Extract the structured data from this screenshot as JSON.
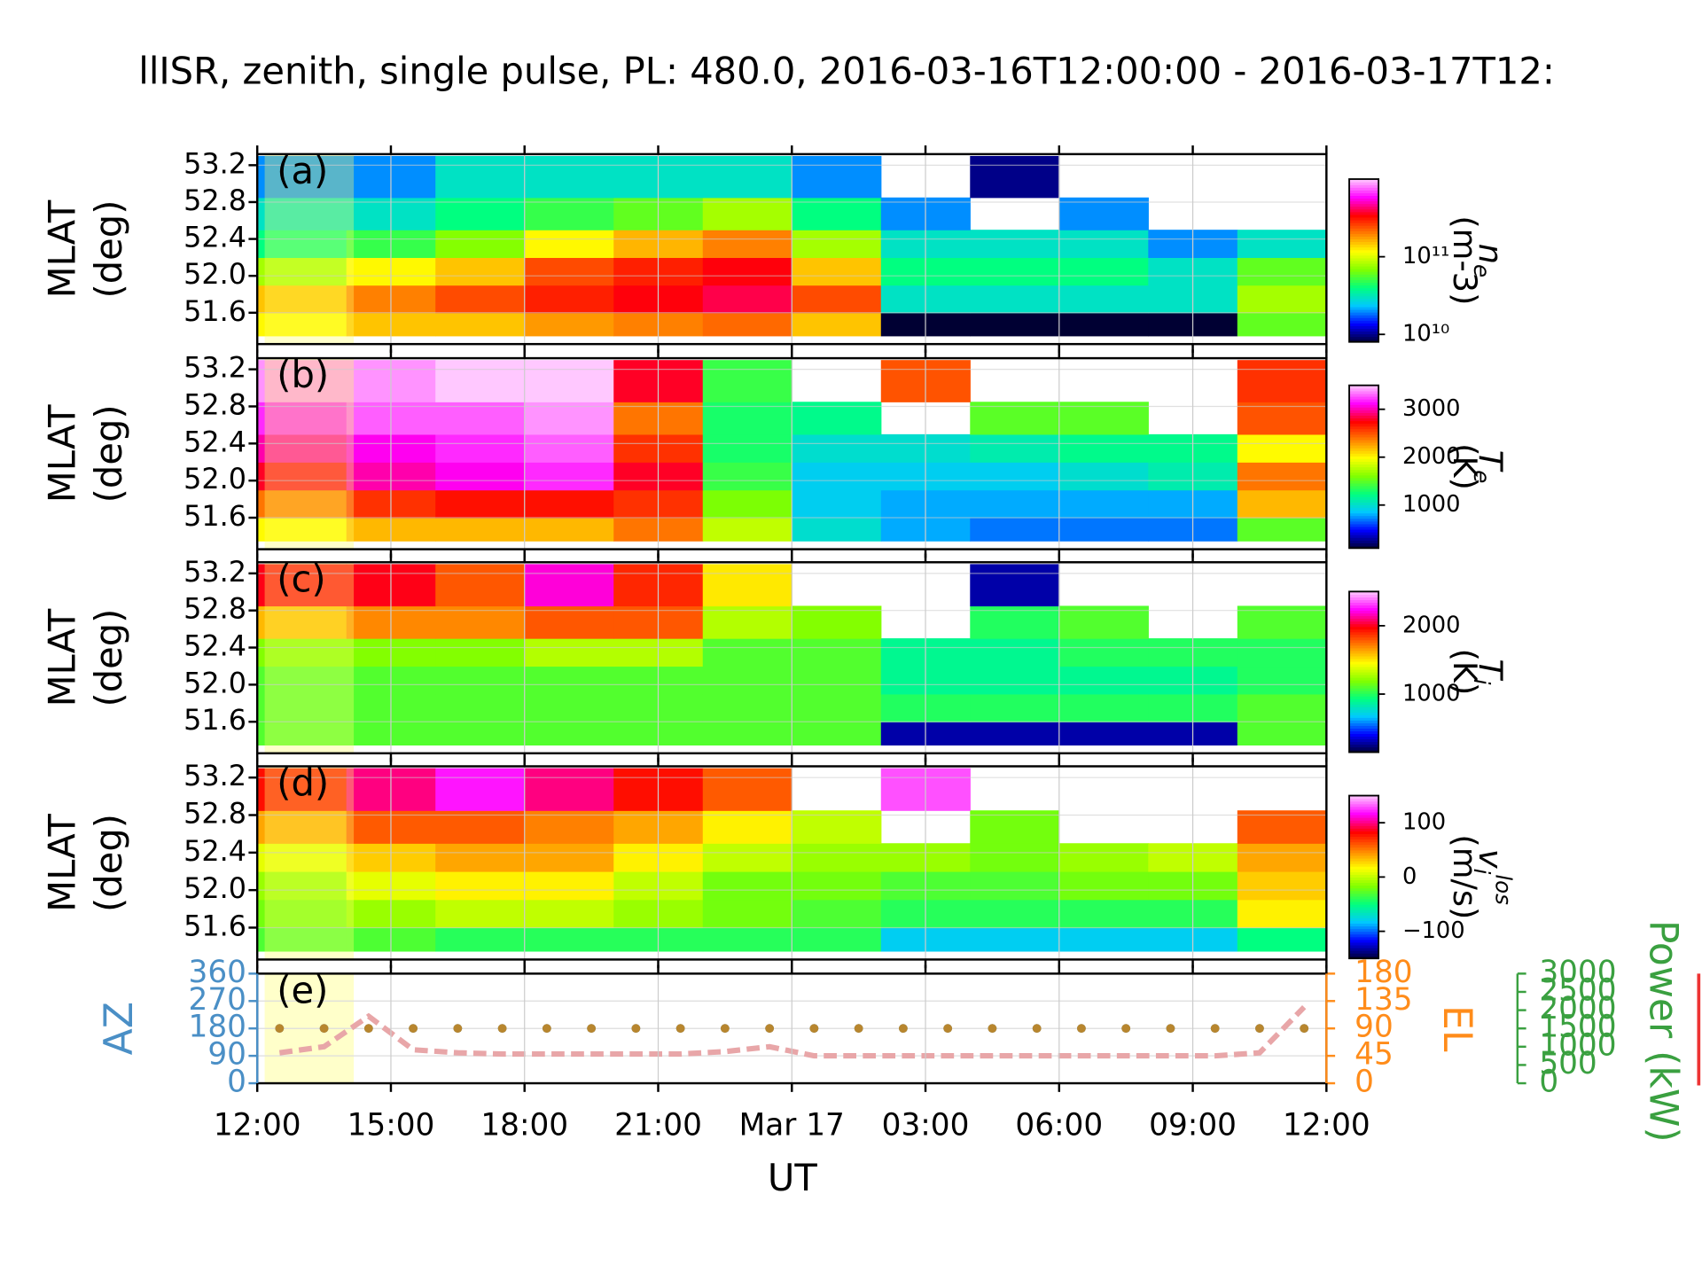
{
  "title": "llISR, zenith, single pulse, PL: 480.0, 2016-03-16T12:00:00 - 2016-03-17T12:",
  "xlabel": "UT",
  "highlight": [
    "2016-03-16T12:10",
    "2016-03-16T14:10"
  ],
  "chart_data": [
    {
      "type": "heatmap",
      "panel_label": "(a)",
      "ylabel": [
        "MLAT",
        "(deg)"
      ],
      "x_bins": [
        "2016-03-16T12:00",
        "2016-03-16T14:00",
        "2016-03-16T16:00",
        "2016-03-16T18:00",
        "2016-03-16T20:00",
        "2016-03-16T22:00",
        "2016-03-17T00:00",
        "2016-03-17T02:00",
        "2016-03-17T04:00",
        "2016-03-17T06:00",
        "2016-03-17T08:00",
        "2016-03-17T10:00",
        "2016-03-17T12:00"
      ],
      "y_bins": [
        51.35,
        51.6,
        51.9,
        52.2,
        52.5,
        52.85,
        53.3
      ],
      "values": [
        [
          120000000000,
          150000000000,
          150000000000,
          180000000000,
          200000000000,
          220000000000,
          150000000000,
          8000000000,
          8000000000,
          8000000000,
          8000000000,
          60000000000
        ],
        [
          150000000000,
          200000000000,
          250000000000,
          300000000000,
          350000000000,
          400000000000,
          250000000000,
          30000000000,
          30000000000,
          30000000000,
          30000000000,
          80000000000
        ],
        [
          80000000000,
          120000000000,
          150000000000,
          250000000000,
          300000000000,
          350000000000,
          150000000000,
          40000000000,
          40000000000,
          40000000000,
          30000000000,
          60000000000
        ],
        [
          40000000000,
          50000000000,
          70000000000,
          120000000000,
          160000000000,
          200000000000,
          80000000000,
          30000000000,
          30000000000,
          30000000000,
          20000000000,
          30000000000
        ],
        [
          30000000000,
          30000000000,
          40000000000,
          50000000000,
          60000000000,
          80000000000,
          40000000000,
          20000000000,
          null,
          20000000000,
          null,
          null
        ],
        [
          20000000000,
          20000000000,
          30000000000,
          30000000000,
          30000000000,
          30000000000,
          20000000000,
          null,
          10000000000,
          null,
          null,
          null
        ]
      ],
      "ylim": [
        51.26,
        53.32
      ],
      "yticks": [
        51.6,
        {
          "value": 52,
          "label": "52.0"
        },
        52.4,
        52.8,
        53.2
      ],
      "grid": true,
      "colormap": [
        "#000033",
        "#0000ff",
        "#00c8ff",
        "#00ff80",
        "#80ff00",
        "#ffff00",
        "#ff8000",
        "#ff0000",
        "#ff00ff",
        "#ffc8ff"
      ],
      "colorbar": {
        "label": "n",
        "label_sub": "e",
        "unit": "(m-3)",
        "log": true,
        "lim": [
          8000000000,
          1000000000000
        ],
        "ticks": [
          {
            "value": 10000000000,
            "label": "10¹⁰"
          },
          {
            "value": 100000000000,
            "label": "10¹¹"
          }
        ]
      }
    },
    {
      "type": "heatmap",
      "panel_label": "(b)",
      "ylabel": [
        "MLAT",
        "(deg)"
      ],
      "x_bins": [
        "2016-03-16T12:00",
        "2016-03-16T14:00",
        "2016-03-16T16:00",
        "2016-03-16T18:00",
        "2016-03-16T20:00",
        "2016-03-16T22:00",
        "2016-03-17T00:00",
        "2016-03-17T02:00",
        "2016-03-17T04:00",
        "2016-03-17T06:00",
        "2016-03-17T08:00",
        "2016-03-17T10:00",
        "2016-03-17T12:00"
      ],
      "y_bins": [
        51.35,
        51.6,
        51.9,
        52.2,
        52.5,
        52.85,
        53.3
      ],
      "values": [
        [
          2000,
          2200,
          2200,
          2200,
          2400,
          1800,
          1000,
          800,
          700,
          700,
          700,
          1500
        ],
        [
          2400,
          2600,
          2700,
          2700,
          2600,
          1600,
          900,
          800,
          800,
          800,
          800,
          2200
        ],
        [
          2800,
          3000,
          3100,
          3200,
          2800,
          1400,
          900,
          900,
          900,
          1000,
          1100,
          2400
        ],
        [
          3000,
          3100,
          3200,
          3300,
          2600,
          1300,
          1000,
          1000,
          1100,
          1200,
          1200,
          2000
        ],
        [
          3200,
          3300,
          3300,
          3400,
          2400,
          1300,
          1200,
          null,
          1500,
          1500,
          null,
          2500
        ],
        [
          3400,
          3400,
          3500,
          3500,
          2800,
          1400,
          null,
          2500,
          null,
          null,
          null,
          2600
        ]
      ],
      "ylim": [
        51.26,
        53.32
      ],
      "yticks": [
        51.6,
        {
          "value": 52,
          "label": "52.0"
        },
        52.4,
        52.8,
        53.2
      ],
      "grid": true,
      "colormap": [
        "#000033",
        "#0000ff",
        "#00c8ff",
        "#00ff80",
        "#80ff00",
        "#ffff00",
        "#ff8000",
        "#ff0000",
        "#ff00ff",
        "#ffc8ff"
      ],
      "colorbar": {
        "label": "T",
        "label_sub": "e",
        "unit": "(K)",
        "log": false,
        "lim": [
          100,
          3500
        ],
        "ticks": [
          1000,
          2000,
          3000
        ]
      }
    },
    {
      "type": "heatmap",
      "panel_label": "(c)",
      "ylabel": [
        "MLAT",
        "(deg)"
      ],
      "x_bins": [
        "2016-03-16T12:00",
        "2016-03-16T14:00",
        "2016-03-16T16:00",
        "2016-03-16T18:00",
        "2016-03-16T20:00",
        "2016-03-16T22:00",
        "2016-03-17T00:00",
        "2016-03-17T02:00",
        "2016-03-17T04:00",
        "2016-03-17T06:00",
        "2016-03-17T08:00",
        "2016-03-17T10:00",
        "2016-03-17T12:00"
      ],
      "y_bins": [
        51.35,
        51.6,
        51.9,
        52.2,
        52.5,
        52.85,
        53.3
      ],
      "values": [
        [
          1100,
          1100,
          1100,
          1100,
          1100,
          1100,
          1100,
          300,
          300,
          300,
          300,
          1100
        ],
        [
          1100,
          1100,
          1100,
          1100,
          1100,
          1100,
          1100,
          1000,
          1000,
          1000,
          1000,
          1100
        ],
        [
          1100,
          1100,
          1100,
          1100,
          1100,
          1100,
          1100,
          900,
          900,
          900,
          900,
          1000
        ],
        [
          1200,
          1200,
          1200,
          1300,
          1300,
          1100,
          1100,
          900,
          900,
          1000,
          1000,
          1000
        ],
        [
          1600,
          1700,
          1700,
          1800,
          1800,
          1300,
          1200,
          null,
          1000,
          1100,
          null,
          1100
        ],
        [
          2000,
          2000,
          1800,
          2200,
          1900,
          1500,
          null,
          null,
          300,
          null,
          null,
          null
        ]
      ],
      "ylim": [
        51.26,
        53.32
      ],
      "yticks": [
        51.6,
        {
          "value": 52,
          "label": "52.0"
        },
        52.4,
        52.8,
        53.2
      ],
      "grid": true,
      "colormap": [
        "#000033",
        "#0000ff",
        "#00c8ff",
        "#00ff80",
        "#80ff00",
        "#ffff00",
        "#ff8000",
        "#ff0000",
        "#ff00ff",
        "#ffc8ff"
      ],
      "colorbar": {
        "label": "T",
        "label_sub": "i",
        "unit": "(K)",
        "log": false,
        "lim": [
          150,
          2500
        ],
        "ticks": [
          1000,
          2000
        ]
      }
    },
    {
      "type": "heatmap",
      "panel_label": "(d)",
      "ylabel": [
        "MLAT",
        "(deg)"
      ],
      "x_bins": [
        "2016-03-16T12:00",
        "2016-03-16T14:00",
        "2016-03-16T16:00",
        "2016-03-16T18:00",
        "2016-03-16T20:00",
        "2016-03-16T22:00",
        "2016-03-17T00:00",
        "2016-03-17T02:00",
        "2016-03-17T04:00",
        "2016-03-17T06:00",
        "2016-03-17T08:00",
        "2016-03-17T10:00",
        "2016-03-17T12:00"
      ],
      "y_bins": [
        51.35,
        51.6,
        51.9,
        52.2,
        52.5,
        52.85,
        53.3
      ],
      "values": [
        [
          -30,
          -30,
          -40,
          -40,
          -40,
          -40,
          -40,
          -80,
          -80,
          -80,
          -80,
          -50
        ],
        [
          -20,
          -10,
          0,
          0,
          -10,
          -20,
          -30,
          -40,
          -40,
          -40,
          -40,
          20
        ],
        [
          -10,
          10,
          20,
          20,
          0,
          -20,
          -20,
          -30,
          -30,
          -20,
          -20,
          30
        ],
        [
          10,
          30,
          40,
          40,
          20,
          0,
          -10,
          -10,
          -20,
          -10,
          0,
          40
        ],
        [
          40,
          60,
          60,
          50,
          40,
          20,
          0,
          null,
          -20,
          null,
          null,
          60
        ],
        [
          80,
          100,
          120,
          100,
          80,
          60,
          null,
          130,
          null,
          null,
          null,
          null
        ]
      ],
      "ylim": [
        51.26,
        53.32
      ],
      "yticks": [
        51.6,
        {
          "value": 52,
          "label": "52.0"
        },
        52.4,
        52.8,
        53.2
      ],
      "grid": true,
      "colormap": [
        "#000033",
        "#0000ff",
        "#00c8ff",
        "#00ff80",
        "#80ff00",
        "#ffff00",
        "#ff8000",
        "#ff0000",
        "#ff00ff",
        "#ffc8ff"
      ],
      "colorbar": {
        "label": "v",
        "label_sub": "i",
        "label_sup": "los",
        "unit": "(m/s)",
        "log": false,
        "lim": [
          -150,
          150
        ],
        "ticks": [
          {
            "value": -100,
            "label": "−100"
          },
          0,
          100
        ]
      }
    },
    {
      "type": "scatter",
      "panel_label": "(e)",
      "ylabel": "AZ",
      "y2label": "EL",
      "y3label": "Power (kW)",
      "grid": true,
      "xlim": [
        "2016-03-16T12:00",
        "2016-03-17T12:00"
      ],
      "xticks": [
        {
          "value": "2016-03-16T12:00",
          "label": "12:00"
        },
        {
          "value": "2016-03-16T15:00",
          "label": "15:00"
        },
        {
          "value": "2016-03-16T18:00",
          "label": "18:00"
        },
        {
          "value": "2016-03-16T21:00",
          "label": "21:00"
        },
        {
          "value": "2016-03-17T00:00",
          "label": "Mar 17"
        },
        {
          "value": "2016-03-17T03:00",
          "label": "03:00"
        },
        {
          "value": "2016-03-17T06:00",
          "label": "06:00"
        },
        {
          "value": "2016-03-17T09:00",
          "label": "09:00"
        },
        {
          "value": "2016-03-17T12:00",
          "label": "12:00"
        }
      ],
      "ylim": [
        0,
        360
      ],
      "yticks": [
        0,
        90,
        180,
        270,
        360
      ],
      "ycolor": "#4a8fc6",
      "y2lim": [
        0,
        180
      ],
      "y2ticks": [
        0,
        45,
        90,
        135,
        180
      ],
      "y2color": "#ff8c1a",
      "y3lim": [
        0,
        3000
      ],
      "y3ticks": [
        0,
        500,
        1000,
        1500,
        2000,
        2500,
        3000
      ],
      "y3color": "#3aa040",
      "x": [
        "2016-03-16T12:30",
        "2016-03-16T13:30",
        "2016-03-16T14:30",
        "2016-03-16T15:30",
        "2016-03-16T16:30",
        "2016-03-16T17:30",
        "2016-03-16T18:30",
        "2016-03-16T19:30",
        "2016-03-16T20:30",
        "2016-03-16T21:30",
        "2016-03-16T22:30",
        "2016-03-16T23:30",
        "2016-03-17T00:30",
        "2016-03-17T01:30",
        "2016-03-17T02:30",
        "2016-03-17T03:30",
        "2016-03-17T04:30",
        "2016-03-17T05:30",
        "2016-03-17T06:30",
        "2016-03-17T07:30",
        "2016-03-17T08:30",
        "2016-03-17T09:30",
        "2016-03-17T10:30",
        "2016-03-17T11:30"
      ],
      "series": [
        {
          "color": "#e8a6a8",
          "axis": "y2",
          "style": "dashed",
          "values": [
            50,
            60,
            110,
            55,
            50,
            48,
            48,
            48,
            48,
            48,
            52,
            60,
            45,
            45,
            45,
            45,
            45,
            45,
            45,
            45,
            45,
            45,
            50,
            125
          ]
        },
        {
          "color": "#4a8fc6",
          "style": "dots",
          "values": [
            180,
            180,
            180,
            180,
            180,
            180,
            180,
            180,
            180,
            180,
            180,
            180,
            180,
            180,
            180,
            180,
            180,
            180,
            180,
            180,
            180,
            180,
            180,
            180
          ]
        },
        {
          "color": "#b8862e",
          "axis": "y2",
          "style": "dots",
          "values": [
            90,
            90,
            90,
            90,
            90,
            90,
            90,
            90,
            90,
            90,
            90,
            90,
            90,
            90,
            90,
            90,
            90,
            90,
            90,
            90,
            90,
            90,
            90,
            90
          ]
        }
      ]
    }
  ]
}
